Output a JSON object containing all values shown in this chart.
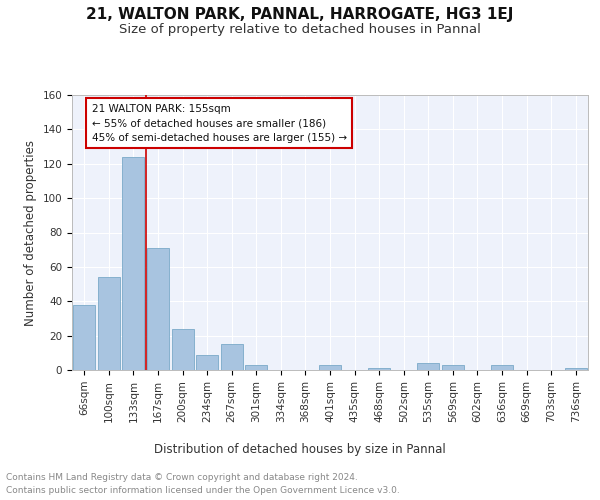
{
  "title": "21, WALTON PARK, PANNAL, HARROGATE, HG3 1EJ",
  "subtitle": "Size of property relative to detached houses in Pannal",
  "xlabel": "Distribution of detached houses by size in Pannal",
  "ylabel": "Number of detached properties",
  "footnote1": "Contains HM Land Registry data © Crown copyright and database right 2024.",
  "footnote2": "Contains public sector information licensed under the Open Government Licence v3.0.",
  "bar_labels": [
    "66sqm",
    "100sqm",
    "133sqm",
    "167sqm",
    "200sqm",
    "234sqm",
    "267sqm",
    "301sqm",
    "334sqm",
    "368sqm",
    "401sqm",
    "435sqm",
    "468sqm",
    "502sqm",
    "535sqm",
    "569sqm",
    "602sqm",
    "636sqm",
    "669sqm",
    "703sqm",
    "736sqm"
  ],
  "bar_values": [
    38,
    54,
    124,
    71,
    24,
    9,
    15,
    3,
    0,
    0,
    3,
    0,
    1,
    0,
    4,
    3,
    0,
    3,
    0,
    0,
    1
  ],
  "bar_color": "#a8c4e0",
  "bar_edge_color": "#7aaac8",
  "vline_x": 2.5,
  "vline_color": "#cc0000",
  "annotation_text": "21 WALTON PARK: 155sqm\n← 55% of detached houses are smaller (186)\n45% of semi-detached houses are larger (155) →",
  "annotation_box_color": "#ffffff",
  "annotation_box_edge_color": "#cc0000",
  "ylim": [
    0,
    160
  ],
  "yticks": [
    0,
    20,
    40,
    60,
    80,
    100,
    120,
    140,
    160
  ],
  "background_color": "#eef2fb",
  "grid_color": "#ffffff",
  "title_fontsize": 11,
  "subtitle_fontsize": 9.5,
  "axis_label_fontsize": 8.5,
  "tick_fontsize": 7.5,
  "annotation_fontsize": 7.5,
  "ylabel_fontsize": 8.5,
  "footnote_fontsize": 6.5
}
